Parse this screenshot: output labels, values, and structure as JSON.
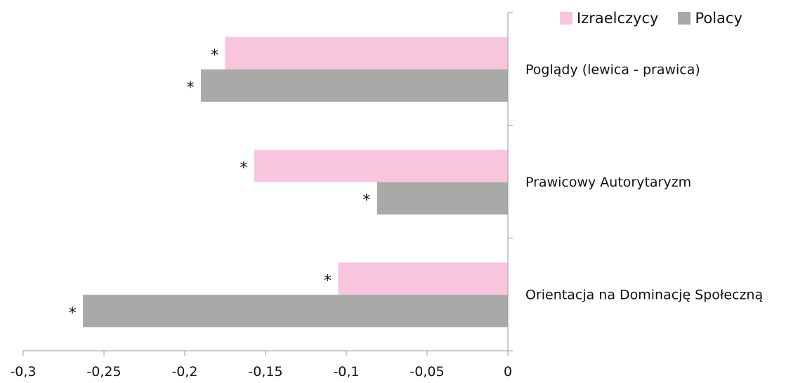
{
  "chart_data": {
    "type": "bar",
    "orientation": "horizontal",
    "categories": [
      "Poglądy (lewica - prawica)",
      "Prawicowy Autorytaryzm",
      "Orientacja na Dominację Społeczną"
    ],
    "series": [
      {
        "name": "Izraelczycy",
        "color": "#f7c6dc",
        "values": [
          -0.175,
          -0.157,
          -0.105
        ],
        "significance": [
          "*",
          "*",
          "*"
        ]
      },
      {
        "name": "Polacy",
        "color": "#a9a9a9",
        "values": [
          -0.19,
          -0.081,
          -0.263
        ],
        "significance": [
          "*",
          "*",
          "*"
        ]
      }
    ],
    "xlim": [
      -0.3,
      0
    ],
    "xticks": [
      -0.3,
      -0.25,
      -0.2,
      -0.15,
      -0.1,
      -0.05,
      0
    ],
    "xtick_labels": [
      "-0,3",
      "-0,25",
      "-0,2",
      "-0,15",
      "-0,1",
      "-0,05",
      "0"
    ],
    "legend_position": "top-right",
    "grid": false
  }
}
